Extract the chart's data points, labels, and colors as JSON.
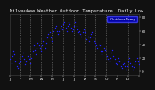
{
  "title": "Milwaukee Weather Outdoor Temperature  Daily Low",
  "title_fontsize": 3.8,
  "bg_color": "#111111",
  "plot_bg_color": "#111111",
  "dot_color": "#2222ff",
  "dot_color_light": "#6666ff",
  "legend_bg_color": "#0000cc",
  "legend_label": "Outdoor Temp",
  "ylim": [
    -5,
    85
  ],
  "xlim": [
    0,
    365
  ],
  "x_ticks": [
    0,
    31,
    59,
    90,
    120,
    151,
    181,
    212,
    243,
    273,
    304,
    334,
    365
  ],
  "x_tick_labels": [
    "J",
    "F",
    "M",
    "A",
    "M",
    "J",
    "J",
    "A",
    "S",
    "O",
    "N",
    "D",
    ""
  ],
  "vline_positions": [
    31,
    59,
    90,
    120,
    151,
    181,
    212,
    243,
    273,
    304,
    334
  ],
  "yticks": [
    0,
    20,
    40,
    60,
    80
  ],
  "ytick_labels": [
    "0",
    "20",
    "40",
    "60",
    "80"
  ],
  "data_points": [
    [
      2,
      18
    ],
    [
      5,
      12
    ],
    [
      8,
      22
    ],
    [
      11,
      30
    ],
    [
      14,
      25
    ],
    [
      17,
      15
    ],
    [
      20,
      8
    ],
    [
      23,
      5
    ],
    [
      26,
      12
    ],
    [
      29,
      20
    ],
    [
      32,
      15
    ],
    [
      35,
      22
    ],
    [
      38,
      28
    ],
    [
      41,
      18
    ],
    [
      44,
      10
    ],
    [
      47,
      15
    ],
    [
      50,
      22
    ],
    [
      53,
      28
    ],
    [
      56,
      18
    ],
    [
      59,
      12
    ],
    [
      62,
      20
    ],
    [
      65,
      30
    ],
    [
      68,
      38
    ],
    [
      71,
      32
    ],
    [
      74,
      25
    ],
    [
      77,
      35
    ],
    [
      80,
      42
    ],
    [
      83,
      38
    ],
    [
      86,
      35
    ],
    [
      89,
      30
    ],
    [
      92,
      38
    ],
    [
      95,
      45
    ],
    [
      98,
      40
    ],
    [
      101,
      35
    ],
    [
      104,
      42
    ],
    [
      107,
      50
    ],
    [
      110,
      55
    ],
    [
      113,
      58
    ],
    [
      116,
      50
    ],
    [
      119,
      45
    ],
    [
      122,
      52
    ],
    [
      125,
      60
    ],
    [
      128,
      65
    ],
    [
      131,
      68
    ],
    [
      134,
      60
    ],
    [
      137,
      55
    ],
    [
      140,
      60
    ],
    [
      143,
      65
    ],
    [
      146,
      68
    ],
    [
      149,
      62
    ],
    [
      152,
      70
    ],
    [
      155,
      72
    ],
    [
      158,
      65
    ],
    [
      161,
      60
    ],
    [
      164,
      68
    ],
    [
      167,
      72
    ],
    [
      170,
      70
    ],
    [
      173,
      65
    ],
    [
      176,
      60
    ],
    [
      179,
      62
    ],
    [
      182,
      68
    ],
    [
      185,
      72
    ],
    [
      188,
      68
    ],
    [
      191,
      62
    ],
    [
      194,
      58
    ],
    [
      197,
      60
    ],
    [
      200,
      55
    ],
    [
      203,
      52
    ],
    [
      206,
      58
    ],
    [
      209,
      62
    ],
    [
      212,
      58
    ],
    [
      215,
      52
    ],
    [
      218,
      48
    ],
    [
      221,
      52
    ],
    [
      224,
      45
    ],
    [
      227,
      50
    ],
    [
      230,
      55
    ],
    [
      233,
      58
    ],
    [
      236,
      50
    ],
    [
      239,
      45
    ],
    [
      242,
      42
    ],
    [
      245,
      38
    ],
    [
      248,
      35
    ],
    [
      251,
      40
    ],
    [
      254,
      38
    ],
    [
      257,
      30
    ],
    [
      260,
      25
    ],
    [
      263,
      30
    ],
    [
      266,
      35
    ],
    [
      269,
      32
    ],
    [
      272,
      28
    ],
    [
      275,
      22
    ],
    [
      278,
      18
    ],
    [
      281,
      15
    ],
    [
      284,
      20
    ],
    [
      287,
      28
    ],
    [
      290,
      32
    ],
    [
      293,
      22
    ],
    [
      296,
      18
    ],
    [
      299,
      12
    ],
    [
      302,
      10
    ],
    [
      305,
      15
    ],
    [
      308,
      20
    ],
    [
      311,
      15
    ],
    [
      314,
      8
    ],
    [
      317,
      5
    ],
    [
      320,
      10
    ],
    [
      323,
      12
    ],
    [
      326,
      8
    ],
    [
      329,
      3
    ],
    [
      332,
      8
    ],
    [
      335,
      15
    ],
    [
      338,
      20
    ],
    [
      341,
      12
    ],
    [
      344,
      8
    ],
    [
      347,
      3
    ],
    [
      350,
      6
    ],
    [
      353,
      10
    ],
    [
      356,
      15
    ],
    [
      359,
      20
    ],
    [
      362,
      15
    ],
    [
      365,
      10
    ]
  ]
}
